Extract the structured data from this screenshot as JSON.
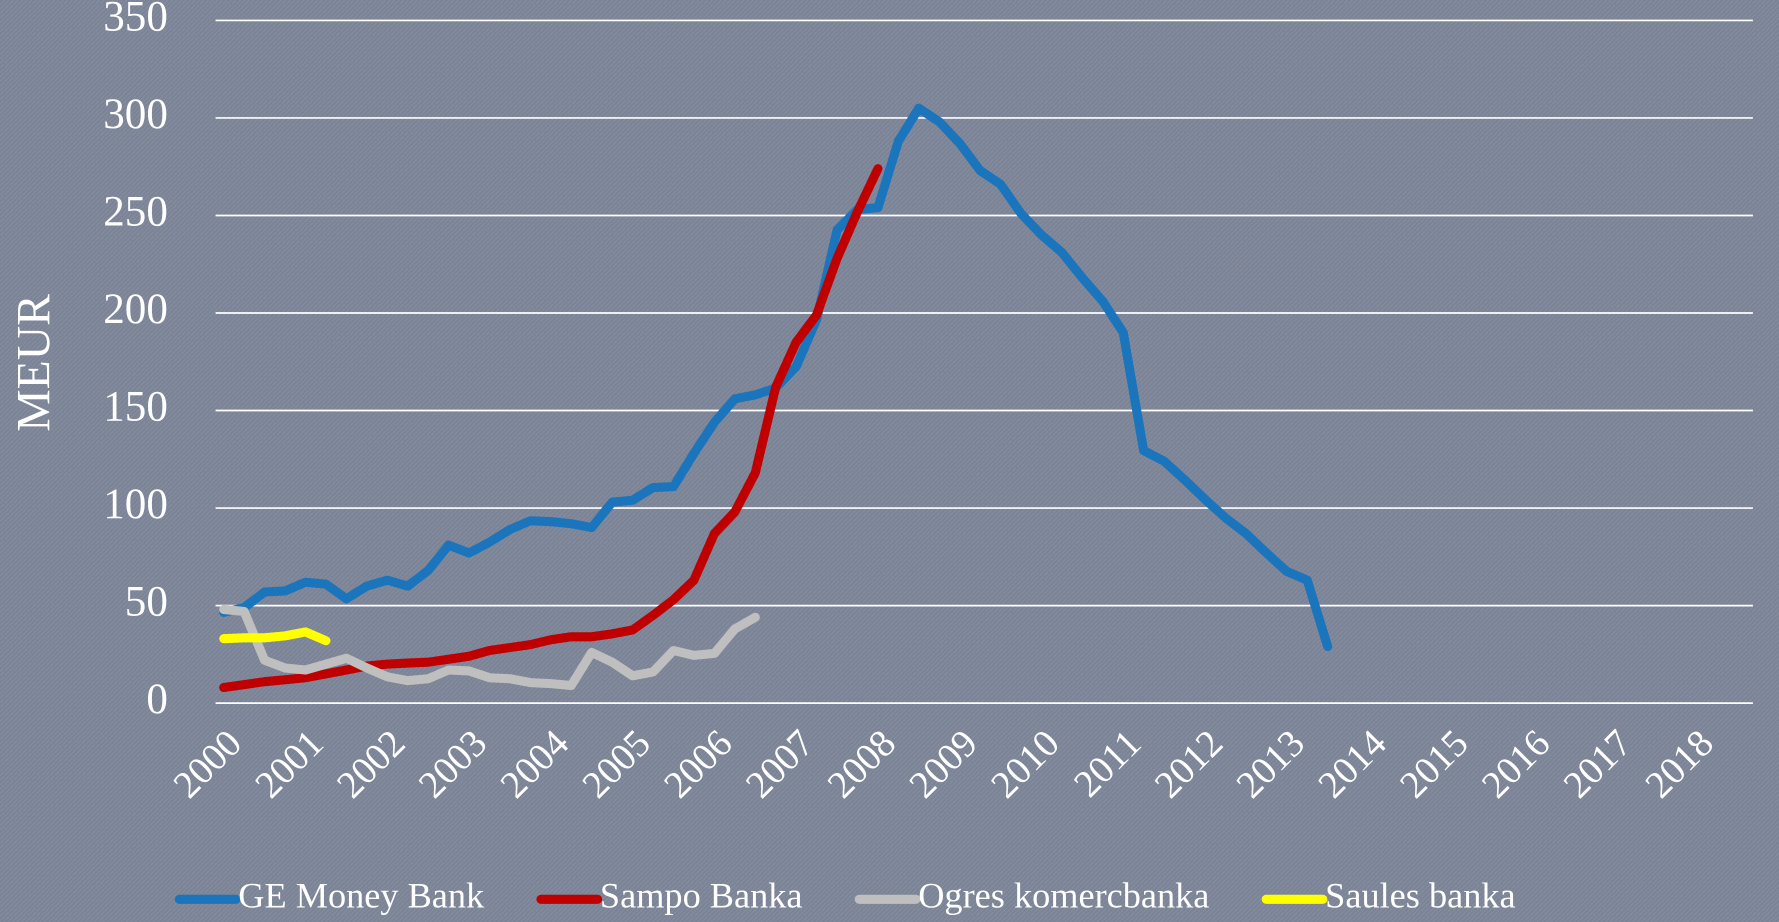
{
  "chart_data": {
    "type": "line",
    "ylabel": "MEUR",
    "xlim": [
      1999.9,
      2018.7
    ],
    "ylim": [
      0,
      350
    ],
    "xticks": [
      2000,
      2001,
      2002,
      2003,
      2004,
      2005,
      2006,
      2007,
      2008,
      2009,
      2010,
      2011,
      2012,
      2013,
      2014,
      2015,
      2016,
      2017,
      2018
    ],
    "yticks": [
      0,
      50,
      100,
      150,
      200,
      250,
      300,
      350
    ],
    "grid": true,
    "legend": "bottom",
    "series": [
      {
        "name": "GE Money Bank",
        "color": "#1b75bc",
        "x": [
          2000,
          2000.25,
          2000.5,
          2000.75,
          2001,
          2001.25,
          2001.5,
          2001.75,
          2002,
          2002.25,
          2002.5,
          2002.75,
          2003,
          2003.25,
          2003.5,
          2003.75,
          2004,
          2004.25,
          2004.5,
          2004.75,
          2005,
          2005.25,
          2005.5,
          2005.75,
          2006,
          2006.25,
          2006.5,
          2006.75,
          2007,
          2007.25,
          2007.5,
          2007.75,
          2008,
          2008.25,
          2008.5,
          2008.75,
          2009,
          2009.25,
          2009.5,
          2009.75,
          2010,
          2010.25,
          2010.5,
          2010.75,
          2011,
          2011.25,
          2011.5,
          2011.75,
          2012,
          2012.25,
          2012.5,
          2012.75,
          2013,
          2013.25,
          2013.5
        ],
        "values": [
          46.5,
          49,
          57,
          57.5,
          62,
          61,
          53.5,
          60,
          63,
          60,
          68,
          81,
          77,
          82.5,
          89,
          93.5,
          93,
          92,
          90,
          103,
          104,
          110.5,
          111,
          128,
          144,
          156,
          158,
          161.5,
          172.5,
          196.5,
          242.5,
          253,
          254,
          288,
          305,
          298,
          287,
          273,
          266,
          251,
          240,
          231,
          218,
          206,
          190,
          129.5,
          124,
          114.5,
          104.5,
          95,
          87,
          77,
          67.5,
          63,
          29
        ]
      },
      {
        "name": "Sampo Banka",
        "color": "#c00000",
        "x": [
          2000,
          2000.25,
          2000.5,
          2000.75,
          2001,
          2001.25,
          2001.5,
          2001.75,
          2002,
          2002.25,
          2002.5,
          2002.75,
          2003,
          2003.25,
          2003.5,
          2003.75,
          2004,
          2004.25,
          2004.5,
          2004.75,
          2005,
          2005.25,
          2005.5,
          2005.75,
          2006,
          2006.25,
          2006.5,
          2006.75,
          2007,
          2007.25,
          2007.5,
          2007.75,
          2008
        ],
        "values": [
          8,
          9.5,
          11,
          12,
          13,
          15,
          17,
          19,
          20,
          20.5,
          21,
          22.5,
          24,
          27,
          28.5,
          30,
          32.5,
          34,
          34,
          35.5,
          37.5,
          45,
          53,
          63,
          87,
          98,
          118,
          162,
          185,
          199,
          228,
          252,
          274
        ]
      },
      {
        "name": "Ogres komercbanka",
        "color": "#bfbfbf",
        "x": [
          2000,
          2000.25,
          2000.5,
          2000.75,
          2001,
          2001.25,
          2001.5,
          2001.75,
          2002,
          2002.25,
          2002.5,
          2002.75,
          2003,
          2003.25,
          2003.5,
          2003.75,
          2004,
          2004.25,
          2004.5,
          2004.75,
          2005,
          2005.25,
          2005.5,
          2005.75,
          2006,
          2006.25,
          2006.5
        ],
        "values": [
          48,
          47,
          22,
          18,
          17,
          20,
          23,
          18,
          13.5,
          11.5,
          12.5,
          17,
          16.5,
          13,
          12.5,
          10.5,
          10,
          9,
          26,
          21,
          14,
          16,
          27,
          24.5,
          25.5,
          38,
          44
        ]
      },
      {
        "name": "Saules banka",
        "color": "#ffff00",
        "x": [
          2000,
          2000.25,
          2000.5,
          2000.75,
          2001,
          2001.25
        ],
        "values": [
          33,
          33.5,
          33.5,
          34.5,
          36.5,
          32
        ]
      }
    ]
  }
}
